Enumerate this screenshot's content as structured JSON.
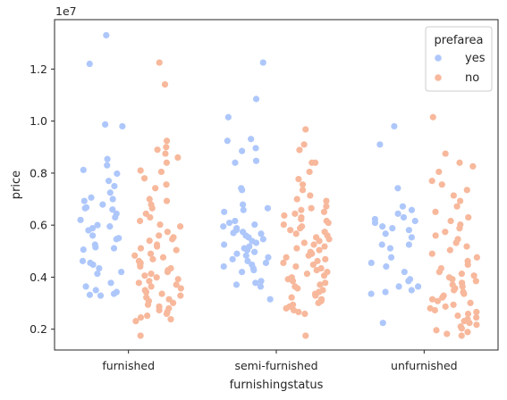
{
  "chart_data": {
    "type": "scatter",
    "subtype": "strip",
    "xlabel": "furnishingstatus",
    "ylabel": "price",
    "offset_text": "1e7",
    "categories": [
      "furnished",
      "semi-furnished",
      "unfurnished"
    ],
    "ylim": [
      1200000,
      13900000
    ],
    "yticks": [
      2000000,
      4000000,
      6000000,
      8000000,
      10000000,
      12000000
    ],
    "ytick_labels": [
      "0.2",
      "0.4",
      "0.6",
      "0.8",
      "1.0",
      "1.2"
    ],
    "grid": false,
    "legend": {
      "title": "prefarea",
      "placement": "top-right"
    },
    "series": [
      {
        "name": "yes",
        "color": "#aec7fb",
        "points": {
          "furnished": [
            13300000,
            12200000,
            9870000,
            9800000,
            8540000,
            8300000,
            8120000,
            7980000,
            7700000,
            7500000,
            7250000,
            7060000,
            7000000,
            6930000,
            6790000,
            6680000,
            6650000,
            6600000,
            6440000,
            6300000,
            6200000,
            6000000,
            5950000,
            5880000,
            5800000,
            5600000,
            5500000,
            5460000,
            5250000,
            5150000,
            5110000,
            5060000,
            4620000,
            4550000,
            4480000,
            4340000,
            4200000,
            4130000,
            3780000,
            3640000,
            3500000,
            3430000,
            3360000,
            3320000,
            3290000
          ],
          "semi-furnished": [
            12250000,
            10850000,
            10150000,
            9310000,
            9240000,
            8960000,
            8850000,
            8470000,
            8400000,
            7420000,
            7350000,
            6790000,
            6650000,
            6580000,
            6510000,
            6160000,
            6090000,
            6020000,
            5950000,
            5880000,
            5810000,
            5740000,
            5700000,
            5670000,
            5600000,
            5530000,
            5460000,
            5390000,
            5320000,
            5250000,
            5180000,
            5110000,
            5040000,
            4970000,
            4900000,
            4830000,
            4760000,
            4690000,
            4620000,
            4550000,
            4480000,
            4410000,
            4340000,
            4270000,
            4200000,
            3850000,
            3780000,
            3710000,
            3640000,
            3150000
          ],
          "unfurnished": [
            9800000,
            9100000,
            7420000,
            6720000,
            6580000,
            6440000,
            6300000,
            6230000,
            6160000,
            6090000,
            5950000,
            5880000,
            5810000,
            5670000,
            5530000,
            5250000,
            5250000,
            5110000,
            4760000,
            4550000,
            4410000,
            4200000,
            3920000,
            3850000,
            3640000,
            3640000,
            3500000,
            3430000,
            3360000,
            2240000
          ]
        }
      },
      {
        "name": "no",
        "color": "#f7b89c",
        "points": {
          "furnished": [
            12250000,
            11410000,
            9240000,
            9000000,
            8900000,
            8750000,
            8600000,
            8400000,
            8100000,
            8050000,
            7800000,
            7560000,
            7420000,
            7000000,
            6930000,
            6790000,
            6650000,
            6440000,
            6300000,
            6160000,
            6020000,
            5950000,
            5740000,
            5600000,
            5530000,
            5460000,
            5400000,
            5250000,
            5180000,
            5110000,
            5040000,
            4900000,
            4830000,
            4760000,
            4690000,
            4620000,
            4550000,
            4480000,
            4410000,
            4340000,
            4270000,
            4200000,
            4130000,
            4060000,
            3990000,
            3920000,
            3850000,
            3780000,
            3710000,
            3640000,
            3570000,
            3500000,
            3430000,
            3360000,
            3290000,
            3220000,
            3150000,
            3080000,
            3010000,
            2940000,
            2870000,
            2800000,
            2730000,
            2660000,
            2590000,
            2520000,
            2450000,
            2380000,
            2310000,
            1750000
          ],
          "semi-furnished": [
            9680000,
            9100000,
            8890000,
            8400000,
            8400000,
            8050000,
            7770000,
            7560000,
            7350000,
            7140000,
            7000000,
            6930000,
            6720000,
            6650000,
            6580000,
            6510000,
            6440000,
            6370000,
            6300000,
            6230000,
            6160000,
            6090000,
            6020000,
            5950000,
            5880000,
            5810000,
            5740000,
            5670000,
            5600000,
            5530000,
            5460000,
            5390000,
            5320000,
            5250000,
            5180000,
            5110000,
            5040000,
            4970000,
            4900000,
            4830000,
            4760000,
            4690000,
            4620000,
            4550000,
            4480000,
            4410000,
            4340000,
            4270000,
            4200000,
            4130000,
            4060000,
            3990000,
            3920000,
            3850000,
            3780000,
            3710000,
            3640000,
            3570000,
            3500000,
            3430000,
            3360000,
            3290000,
            3220000,
            3150000,
            3080000,
            3010000,
            2940000,
            2870000,
            2800000,
            2730000,
            2660000,
            2590000,
            1750000
          ],
          "unfurnished": [
            10150000,
            8750000,
            8400000,
            8260000,
            8050000,
            7700000,
            7560000,
            7350000,
            7140000,
            6930000,
            6720000,
            6510000,
            6300000,
            6160000,
            6020000,
            5880000,
            5740000,
            5600000,
            5460000,
            5320000,
            5180000,
            5040000,
            4900000,
            4760000,
            4620000,
            4480000,
            4340000,
            4200000,
            4130000,
            4060000,
            3990000,
            3920000,
            3850000,
            3780000,
            3710000,
            3640000,
            3570000,
            3500000,
            3430000,
            3360000,
            3290000,
            3220000,
            3150000,
            3080000,
            3010000,
            2940000,
            2870000,
            2800000,
            2730000,
            2660000,
            2590000,
            2520000,
            2450000,
            2380000,
            2310000,
            2240000,
            2170000,
            2100000,
            2030000,
            1960000,
            1890000,
            1820000,
            1750000
          ]
        }
      }
    ]
  }
}
